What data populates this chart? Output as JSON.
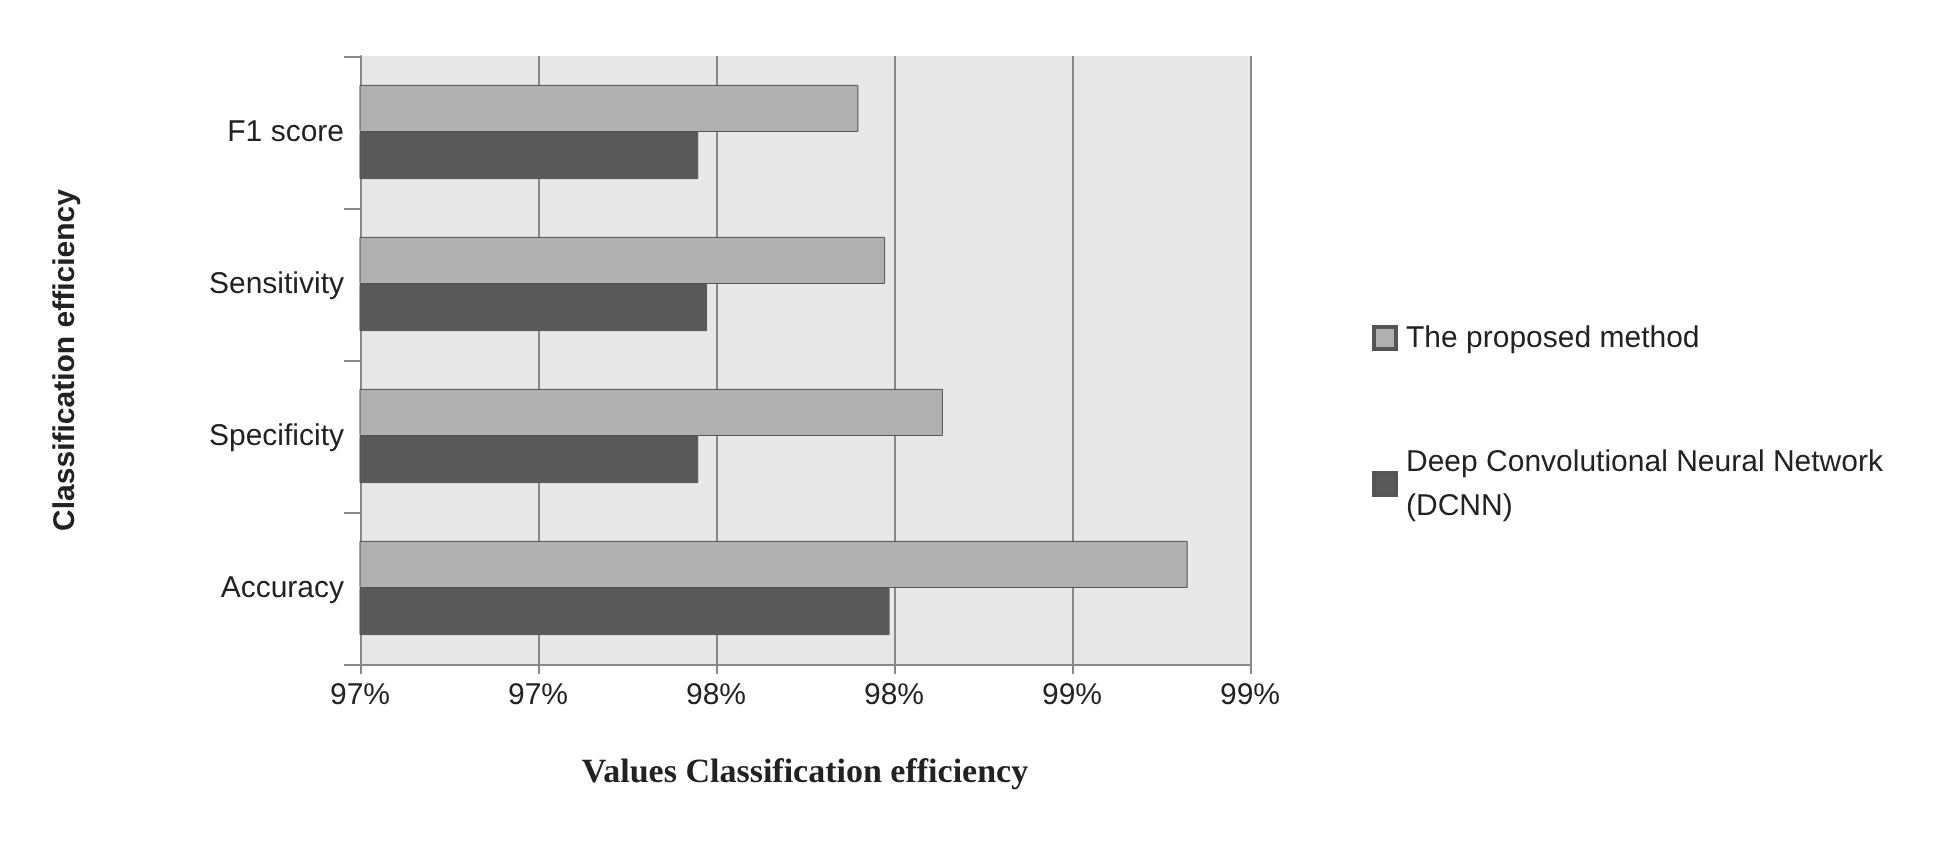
{
  "chart_data": {
    "type": "bar",
    "orientation": "horizontal",
    "xlabel": "Values Classification efficiency",
    "ylabel": "Classification efficiency",
    "categories": [
      "F1 score",
      "Sensitivity",
      "Specificity",
      "Accuracy"
    ],
    "series": [
      {
        "name": "The proposed method",
        "color": "#b0b0b0",
        "values": [
          98.12,
          98.18,
          98.31,
          98.86
        ]
      },
      {
        "name": "Deep Convolutional Neural Network  (DCNN)",
        "color": "#595959",
        "values": [
          97.76,
          97.78,
          97.76,
          98.19
        ]
      }
    ],
    "xlim": [
      97.0,
      99.0
    ],
    "xticks": [
      {
        "value": 97.0,
        "label": "97%"
      },
      {
        "value": 97.4,
        "label": "97%"
      },
      {
        "value": 97.8,
        "label": "98%"
      },
      {
        "value": 98.2,
        "label": "98%"
      },
      {
        "value": 98.6,
        "label": "99%"
      },
      {
        "value": 99.0,
        "label": "99%"
      }
    ],
    "grid": "x",
    "legend": "right"
  }
}
